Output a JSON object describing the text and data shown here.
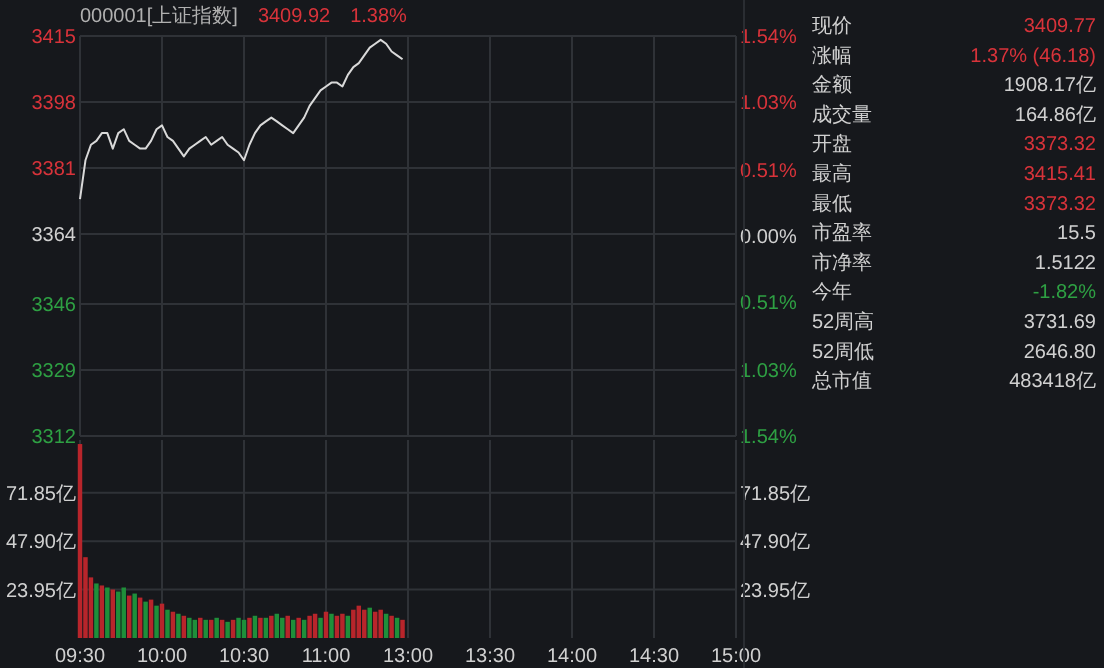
{
  "chart_data": [
    {
      "type": "line",
      "title": "000001[上证指数]",
      "annotations": [
        "3409.92",
        "1.38%"
      ],
      "categories": [
        null,
        null,
        null,
        null,
        null,
        null,
        null,
        null,
        null,
        null,
        null,
        null,
        null,
        null,
        null,
        null,
        null,
        null,
        null,
        null,
        null,
        null,
        null,
        null,
        null,
        null,
        null,
        null,
        null,
        null,
        null,
        null,
        null,
        null,
        null,
        null,
        null,
        null,
        null,
        null,
        null,
        null,
        null,
        null,
        null,
        null,
        null,
        null,
        null,
        null,
        null,
        null,
        null,
        null,
        null,
        null,
        null,
        null,
        null,
        null,
        null,
        null,
        null,
        null,
        null,
        null,
        null,
        null,
        null,
        null,
        null,
        null,
        null,
        null,
        null,
        null,
        null,
        null,
        null,
        null,
        null,
        null,
        null,
        null,
        null,
        null,
        null,
        null,
        null,
        null,
        null,
        null,
        null,
        null,
        null,
        null,
        null,
        null,
        null,
        null,
        null,
        null,
        null,
        null,
        null,
        null,
        null,
        null,
        null,
        null,
        null,
        null,
        null,
        null,
        null,
        null,
        null,
        null,
        null,
        null,
        null
      ],
      "values": [
        3373,
        3383,
        3387,
        3388,
        3390,
        3390,
        3386,
        3390,
        3391,
        3388,
        3387,
        3386,
        3386,
        3388,
        3391,
        3392,
        3389,
        3388,
        3386,
        3384,
        3386,
        3387,
        3388,
        3389,
        3387,
        3388,
        3389,
        3387,
        3386,
        3385,
        3383,
        3387,
        3390,
        3392,
        3393,
        3394,
        3393,
        3392,
        3391,
        3390,
        3392,
        3394,
        3397,
        3399,
        3401,
        3402,
        3403,
        3403,
        3402,
        3405,
        3407,
        3408,
        3410,
        3412,
        3413,
        3414,
        3413,
        3411,
        3410,
        3409,
        null,
        null,
        null,
        null,
        null,
        null,
        null,
        null,
        null,
        null,
        null,
        null,
        null,
        null,
        null,
        null,
        null,
        null,
        null,
        null,
        null,
        null,
        null,
        null,
        null,
        null,
        null,
        null,
        null,
        null,
        null,
        null,
        null,
        null,
        null,
        null,
        null,
        null,
        null,
        null,
        null,
        null,
        null,
        null,
        null,
        null,
        null,
        null,
        null,
        null,
        null,
        null,
        null,
        null,
        null,
        null,
        null,
        null,
        null,
        null,
        null
      ],
      "color": "#d9d9d9",
      "ylim": [
        3312,
        3415
      ],
      "yticks": [
        3312,
        3329,
        3346,
        3364,
        3381,
        3398,
        3415
      ],
      "y2lim": [
        -1.54,
        1.54
      ],
      "y2ticks": [
        {
          "value": -1.54,
          "label": "1.54%"
        },
        {
          "value": -1.03,
          "label": "1.03%"
        },
        {
          "value": -0.51,
          "label": "0.51%"
        },
        {
          "value": 0,
          "label": "0.00%"
        },
        {
          "value": 0.51,
          "label": "0.51%"
        },
        {
          "value": 1.03,
          "label": "1.03%"
        },
        {
          "value": 1.54,
          "label": "1.54%"
        }
      ],
      "grid": true,
      "tick_labels": "y"
    },
    {
      "type": "bar",
      "categories": [
        "09:30",
        null,
        null,
        null,
        null,
        null,
        null,
        null,
        null,
        null,
        null,
        null,
        null,
        null,
        null,
        "10:00",
        null,
        null,
        null,
        null,
        null,
        null,
        null,
        null,
        null,
        null,
        null,
        null,
        null,
        null,
        "10:30",
        null,
        null,
        null,
        null,
        null,
        null,
        null,
        null,
        null,
        null,
        null,
        null,
        null,
        null,
        "11:00",
        null,
        null,
        null,
        null,
        null,
        null,
        null,
        null,
        null,
        null,
        null,
        null,
        null,
        null,
        "13:00",
        null,
        null,
        null,
        null,
        null,
        null,
        null,
        null,
        null,
        null,
        null,
        null,
        null,
        null,
        "13:30",
        null,
        null,
        null,
        null,
        null,
        null,
        null,
        null,
        null,
        null,
        null,
        null,
        null,
        null,
        "14:00",
        null,
        null,
        null,
        null,
        null,
        null,
        null,
        null,
        null,
        null,
        null,
        null,
        null,
        null,
        "14:30",
        null,
        null,
        null,
        null,
        null,
        null,
        null,
        null,
        null,
        null,
        null,
        null,
        null,
        null,
        "15:00"
      ],
      "series": [
        {
          "color": "#b8252b",
          "values": [
            96,
            40,
            30,
            null,
            26,
            null,
            24,
            null,
            null,
            21,
            null,
            20,
            null,
            19,
            null,
            17,
            null,
            13,
            null,
            11,
            null,
            null,
            10,
            null,
            9,
            null,
            9,
            null,
            9,
            null,
            null,
            10,
            null,
            10,
            null,
            11,
            null,
            null,
            11,
            null,
            10,
            null,
            11,
            12,
            null,
            13,
            null,
            11,
            12,
            null,
            14,
            16,
            14,
            null,
            13,
            14,
            null,
            11,
            null,
            9,
            null,
            null,
            null,
            null,
            null,
            null,
            null,
            null,
            null,
            null,
            null,
            null,
            null,
            null,
            null,
            null,
            null,
            null,
            null,
            null,
            null,
            null,
            null,
            null,
            null,
            null,
            null,
            null,
            null,
            null,
            null,
            null,
            null,
            null,
            null,
            null,
            null,
            null,
            null,
            null,
            null,
            null,
            null,
            null,
            null,
            null,
            null,
            null,
            null,
            null,
            null,
            null,
            null,
            null,
            null,
            null,
            null,
            null,
            null,
            null,
            null
          ]
        },
        {
          "color": "#1f8f3a",
          "values": [
            null,
            null,
            null,
            27,
            null,
            25,
            null,
            23,
            25,
            null,
            22,
            null,
            18,
            null,
            16,
            null,
            14,
            null,
            12,
            null,
            10,
            9,
            null,
            9,
            null,
            10,
            null,
            8,
            null,
            10,
            9,
            null,
            11,
            null,
            10,
            null,
            12,
            10,
            null,
            9,
            null,
            9,
            null,
            null,
            10,
            null,
            12,
            null,
            null,
            11,
            null,
            null,
            null,
            15,
            null,
            null,
            12,
            null,
            10,
            null,
            null,
            null,
            null,
            null,
            null,
            null,
            null,
            null,
            null,
            null,
            null,
            null,
            null,
            null,
            null,
            null,
            null,
            null,
            null,
            null,
            null,
            null,
            null,
            null,
            null,
            null,
            null,
            null,
            null,
            null,
            null,
            null,
            null,
            null,
            null,
            null,
            null,
            null,
            null,
            null,
            null,
            null,
            null,
            null,
            null,
            null,
            null,
            null,
            null,
            null,
            null,
            null,
            null,
            null,
            null,
            null,
            null,
            null,
            null,
            null,
            null
          ]
        }
      ],
      "ylim": [
        0,
        98
      ],
      "yticks": [
        {
          "value": 23.95,
          "label": "23.95亿"
        },
        {
          "value": 47.9,
          "label": "47.90亿"
        },
        {
          "value": 71.85,
          "label": "71.85亿"
        }
      ],
      "y2lim": [
        0,
        98
      ],
      "y2ticks": [
        {
          "value": 23.95,
          "label": "23.95亿"
        },
        {
          "value": 47.9,
          "label": "47.90亿"
        },
        {
          "value": 71.85,
          "label": "71.85亿"
        }
      ],
      "grid": true
    },
    {
      "type": "other",
      "categories": [
        "现价",
        "涨幅",
        "金额",
        "成交量",
        "开盘",
        "最高",
        "最低",
        "市盈率",
        "市净率",
        "今年",
        "52周高",
        "52周低",
        "总市值"
      ],
      "value_labels": [
        "3409.77",
        "1.37% (46.18)",
        "1908.17亿",
        "164.86亿",
        "3373.32",
        "3415.41",
        "3373.32",
        "15.5",
        "1.5122",
        "-1.82%",
        "3731.69",
        "2646.80",
        "483418亿"
      ],
      "colors": [
        "#d8333a",
        "#d8333a",
        "#d0d0d0",
        "#d0d0d0",
        "#d8333a",
        "#d8333a",
        "#d8333a",
        "#d0d0d0",
        "#d0d0d0",
        "#2ea043",
        "#d0d0d0",
        "#d0d0d0",
        "#d0d0d0"
      ]
    }
  ]
}
